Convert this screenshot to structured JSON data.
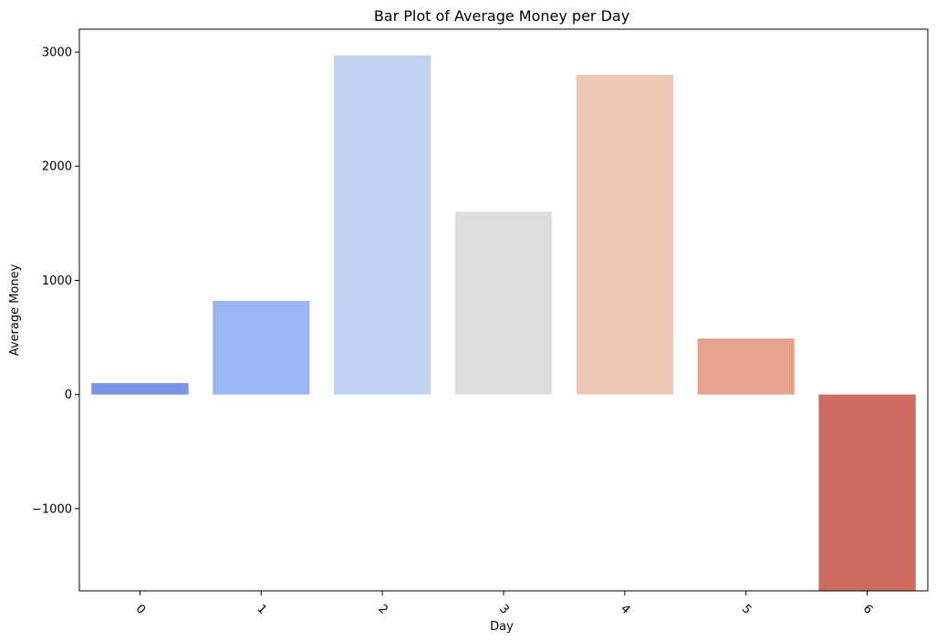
{
  "chart_data": {
    "type": "bar",
    "title": "Bar Plot of Average Money per Day",
    "xlabel": "Day",
    "ylabel": "Average Money",
    "categories": [
      "0",
      "1",
      "2",
      "3",
      "4",
      "5",
      "6"
    ],
    "values": [
      100,
      820,
      2970,
      1600,
      2800,
      490,
      -1720
    ],
    "bar_colors": [
      "#7b93e3",
      "#9bb5f2",
      "#c1d3f1",
      "#dddddd",
      "#edc7b6",
      "#e6a28a",
      "#cd6b60"
    ],
    "ylim": [
      -1720,
      3200
    ],
    "yticks": [
      -1000,
      0,
      1000,
      2000,
      3000
    ],
    "ytick_labels": [
      "−1000",
      "0",
      "1000",
      "2000",
      "3000"
    ],
    "xtick_rotation": "45 degrees",
    "grid": false,
    "legend": "none"
  }
}
